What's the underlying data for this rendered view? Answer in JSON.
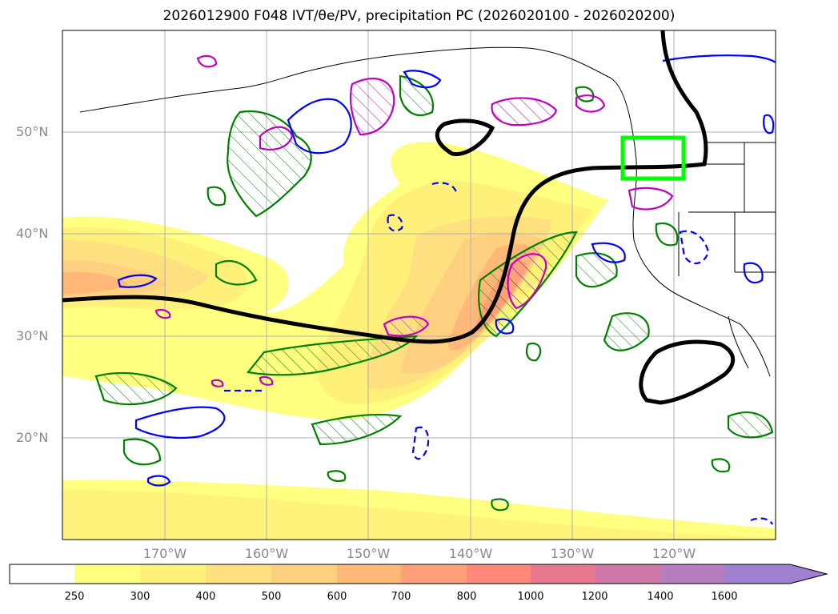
{
  "title": "2026012900 F048 IVT/θe/PV, precipitation PC (2026020100 - 2026020200)",
  "map": {
    "projection": "PlateCarree",
    "lon_range": [
      -180,
      -110
    ],
    "lat_range": [
      10,
      60
    ],
    "lat_labels": [
      "50°N",
      "40°N",
      "30°N",
      "20°N"
    ],
    "lon_labels": [
      "170°W",
      "160°W",
      "150°W",
      "140°W",
      "130°W",
      "120°W"
    ],
    "highlight_box": {
      "lon": [
        -125,
        -119
      ],
      "lat": [
        45.5,
        49.5
      ],
      "color": "#00ff00"
    },
    "contour_colors": {
      "theta_e": "#000000",
      "precip_pc": "#008000",
      "pv_positive": "#c000c0",
      "pv_negative": "#0000ff"
    }
  },
  "colorbar": {
    "levels": [
      "250",
      "300",
      "400",
      "500",
      "600",
      "700",
      "800",
      "1000",
      "1200",
      "1400",
      "1600"
    ],
    "colors": [
      "#ffffff",
      "#ffff80",
      "#fff07a",
      "#ffe080",
      "#ffd080",
      "#ffb878",
      "#ffa078",
      "#ff8878",
      "#e87890",
      "#d078a8",
      "#b87cc0",
      "#a080d0"
    ],
    "extend": "max"
  }
}
